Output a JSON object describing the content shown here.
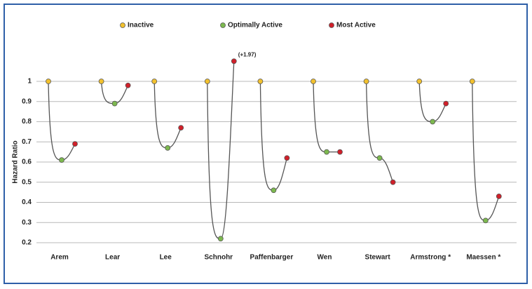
{
  "chart_data": {
    "type": "line",
    "y_label": "Hazard Ratio",
    "categories": [
      "Arem",
      "Lear",
      "Lee",
      "Schnohr",
      "Paffenbarger",
      "Wen",
      "Stewart",
      "Armstrong *",
      "Maessen *"
    ],
    "series": [
      {
        "name": "Inactive",
        "color": "#f2c12e",
        "values": [
          1,
          1,
          1,
          1,
          1,
          1,
          1,
          1,
          1
        ]
      },
      {
        "name": "Optimally Active",
        "color": "#7db94f",
        "values": [
          0.61,
          0.89,
          0.67,
          0.22,
          0.46,
          0.65,
          0.62,
          0.8,
          0.31
        ]
      },
      {
        "name": "Most Active",
        "color": "#d0202a",
        "values": [
          0.69,
          0.98,
          0.77,
          1.97,
          0.62,
          0.65,
          0.5,
          0.89,
          0.43
        ]
      }
    ],
    "annotation": "(+1.97)",
    "ylim": [
      0.2,
      1.1
    ],
    "yticks": [
      0.2,
      0.3,
      0.4,
      0.5,
      0.6,
      0.7,
      0.8,
      0.9,
      1
    ],
    "grid": true
  }
}
